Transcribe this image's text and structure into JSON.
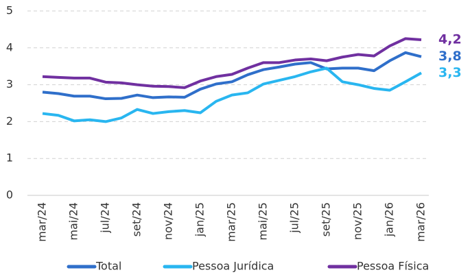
{
  "chart_data": {
    "type": "line",
    "categories": [
      "mar/24",
      null,
      "mai/24",
      null,
      "jul/24",
      null,
      "set/24",
      null,
      "nov/24",
      null,
      "jan/25",
      null,
      "mar/25",
      null,
      "mai/25",
      null,
      "jul/25",
      null,
      "set/25",
      null,
      "nov/25",
      null,
      "jan/26",
      null,
      "mar/26"
    ],
    "series": [
      {
        "name": "Total",
        "color": "#2f6fca",
        "values": [
          2.8,
          2.76,
          2.69,
          2.69,
          2.62,
          2.63,
          2.72,
          2.65,
          2.67,
          2.66,
          2.88,
          3.02,
          3.08,
          3.27,
          3.41,
          3.48,
          3.56,
          3.6,
          3.43,
          3.45,
          3.45,
          3.38,
          3.65,
          3.87,
          3.76
        ],
        "value_labels": [
          null,
          null,
          null,
          null,
          null,
          null,
          null,
          null,
          null,
          null,
          null,
          null,
          null,
          null,
          null,
          null,
          null,
          null,
          null,
          null,
          null,
          null,
          null,
          null,
          "3,8"
        ]
      },
      {
        "name": "Pessoa Jurídica",
        "color": "#29b6f0",
        "values": [
          2.22,
          2.17,
          2.02,
          2.05,
          2.0,
          2.1,
          2.33,
          2.22,
          2.27,
          2.3,
          2.24,
          2.55,
          2.72,
          2.78,
          3.02,
          3.12,
          3.22,
          3.35,
          3.45,
          3.08,
          3.0,
          2.9,
          2.85,
          3.08,
          3.32
        ],
        "value_labels": [
          null,
          null,
          null,
          null,
          null,
          null,
          null,
          null,
          null,
          null,
          null,
          null,
          null,
          null,
          null,
          null,
          null,
          null,
          null,
          null,
          null,
          null,
          null,
          null,
          "3,3"
        ]
      },
      {
        "name": "Pessoa Física",
        "color": "#7030a0",
        "values": [
          3.22,
          3.2,
          3.18,
          3.18,
          3.07,
          3.05,
          3.0,
          2.96,
          2.95,
          2.92,
          3.1,
          3.22,
          3.28,
          3.45,
          3.6,
          3.6,
          3.67,
          3.7,
          3.65,
          3.75,
          3.82,
          3.78,
          4.05,
          4.25,
          4.22
        ],
        "value_labels": [
          null,
          null,
          null,
          null,
          null,
          null,
          null,
          null,
          null,
          null,
          null,
          null,
          null,
          null,
          null,
          null,
          null,
          null,
          null,
          null,
          null,
          null,
          null,
          null,
          "4,2"
        ]
      }
    ],
    "ylim": [
      0,
      5
    ],
    "yticks": [
      0,
      1,
      2,
      3,
      4,
      5
    ],
    "grid": true,
    "legend": "bottom"
  }
}
